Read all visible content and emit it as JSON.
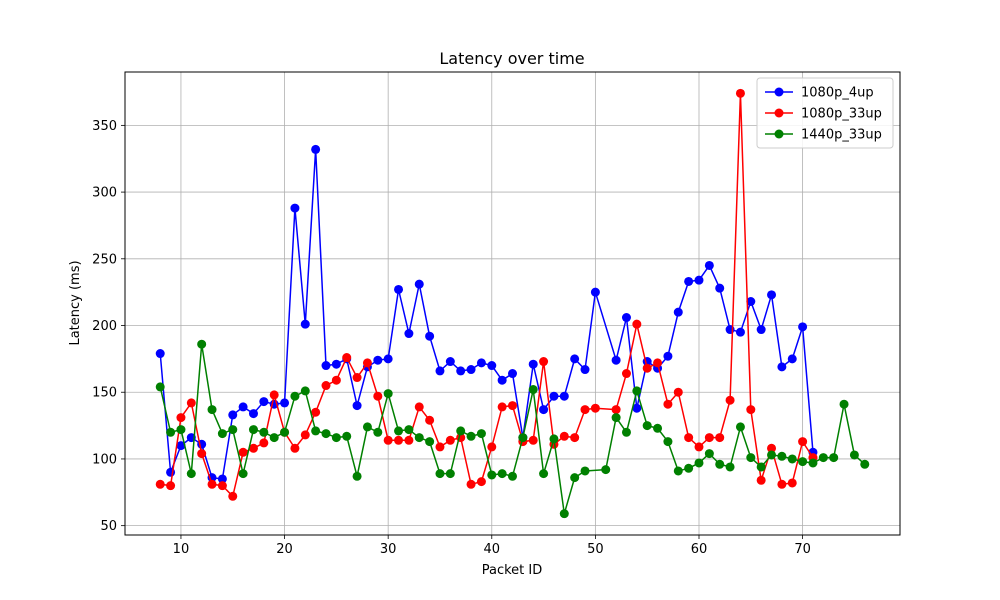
{
  "chart_data": {
    "type": "line",
    "title": "Latency over time",
    "xlabel": "Packet ID",
    "ylabel": "Latency (ms)",
    "xlim": [
      4.6,
      79.4
    ],
    "ylim": [
      43,
      390
    ],
    "xticks": [
      10,
      20,
      30,
      40,
      50,
      60,
      70
    ],
    "yticks": [
      50,
      100,
      150,
      200,
      250,
      300,
      350
    ],
    "grid": true,
    "legend_position": "top-right",
    "series": [
      {
        "name": "1080p_4up",
        "color": "#0000ff",
        "points": [
          [
            8,
            179
          ],
          [
            9,
            90
          ],
          [
            10,
            110
          ],
          [
            11,
            116
          ],
          [
            12,
            111
          ],
          [
            13,
            86
          ],
          [
            14,
            85
          ],
          [
            15,
            133
          ],
          [
            16,
            139
          ],
          [
            17,
            134
          ],
          [
            18,
            143
          ],
          [
            19,
            141
          ],
          [
            20,
            142
          ],
          [
            21,
            288
          ],
          [
            22,
            201
          ],
          [
            23,
            332
          ],
          [
            24,
            170
          ],
          [
            25,
            171
          ],
          [
            26,
            175
          ],
          [
            27,
            140
          ],
          [
            28,
            169
          ],
          [
            29,
            174
          ],
          [
            30,
            175
          ],
          [
            31,
            227
          ],
          [
            32,
            194
          ],
          [
            33,
            231
          ],
          [
            34,
            192
          ],
          [
            35,
            166
          ],
          [
            36,
            173
          ],
          [
            37,
            166
          ],
          [
            38,
            167
          ],
          [
            39,
            172
          ],
          [
            40,
            170
          ],
          [
            41,
            159
          ],
          [
            42,
            164
          ],
          [
            43,
            116
          ],
          [
            44,
            171
          ],
          [
            45,
            137
          ],
          [
            46,
            147
          ],
          [
            47,
            147
          ],
          [
            48,
            175
          ],
          [
            49,
            167
          ],
          [
            50,
            225
          ],
          [
            52,
            174
          ],
          [
            53,
            206
          ],
          [
            54,
            138
          ],
          [
            55,
            173
          ],
          [
            56,
            168
          ],
          [
            57,
            177
          ],
          [
            58,
            210
          ],
          [
            59,
            233
          ],
          [
            60,
            234
          ],
          [
            61,
            245
          ],
          [
            62,
            228
          ],
          [
            63,
            197
          ],
          [
            64,
            195
          ],
          [
            65,
            218
          ],
          [
            66,
            197
          ],
          [
            67,
            223
          ],
          [
            68,
            169
          ],
          [
            69,
            175
          ],
          [
            70,
            199
          ],
          [
            71,
            105
          ]
        ]
      },
      {
        "name": "1080p_33up",
        "color": "#ff0000",
        "points": [
          [
            8,
            81
          ],
          [
            9,
            80
          ],
          [
            10,
            131
          ],
          [
            11,
            142
          ],
          [
            12,
            104
          ],
          [
            13,
            81
          ],
          [
            14,
            80
          ],
          [
            15,
            72
          ],
          [
            16,
            105
          ],
          [
            17,
            108
          ],
          [
            18,
            112
          ],
          [
            19,
            148
          ],
          [
            20,
            120
          ],
          [
            21,
            108
          ],
          [
            22,
            118
          ],
          [
            23,
            135
          ],
          [
            24,
            155
          ],
          [
            25,
            159
          ],
          [
            26,
            176
          ],
          [
            27,
            161
          ],
          [
            28,
            172
          ],
          [
            29,
            147
          ],
          [
            30,
            114
          ],
          [
            31,
            114
          ],
          [
            32,
            114
          ],
          [
            33,
            139
          ],
          [
            34,
            129
          ],
          [
            35,
            109
          ],
          [
            36,
            114
          ],
          [
            37,
            116
          ],
          [
            38,
            81
          ],
          [
            39,
            83
          ],
          [
            40,
            109
          ],
          [
            41,
            139
          ],
          [
            42,
            140
          ],
          [
            43,
            113
          ],
          [
            44,
            114
          ],
          [
            45,
            173
          ],
          [
            46,
            111
          ],
          [
            47,
            117
          ],
          [
            48,
            116
          ],
          [
            49,
            137
          ],
          [
            50,
            138
          ],
          [
            52,
            137
          ],
          [
            53,
            164
          ],
          [
            54,
            201
          ],
          [
            55,
            168
          ],
          [
            56,
            172
          ],
          [
            57,
            141
          ],
          [
            58,
            150
          ],
          [
            59,
            116
          ],
          [
            60,
            109
          ],
          [
            61,
            116
          ],
          [
            62,
            116
          ],
          [
            63,
            144
          ],
          [
            64,
            374
          ],
          [
            65,
            137
          ],
          [
            66,
            84
          ],
          [
            67,
            108
          ],
          [
            68,
            81
          ],
          [
            69,
            82
          ],
          [
            70,
            113
          ],
          [
            71,
            101
          ]
        ]
      },
      {
        "name": "1440p_33up",
        "color": "#008000",
        "points": [
          [
            8,
            154
          ],
          [
            9,
            120
          ],
          [
            10,
            122
          ],
          [
            11,
            89
          ],
          [
            12,
            186
          ],
          [
            13,
            137
          ],
          [
            14,
            119
          ],
          [
            15,
            122
          ],
          [
            16,
            89
          ],
          [
            17,
            122
          ],
          [
            18,
            120
          ],
          [
            19,
            116
          ],
          [
            20,
            120
          ],
          [
            21,
            147
          ],
          [
            22,
            151
          ],
          [
            23,
            121
          ],
          [
            24,
            119
          ],
          [
            25,
            116
          ],
          [
            26,
            117
          ],
          [
            27,
            87
          ],
          [
            28,
            124
          ],
          [
            29,
            120
          ],
          [
            30,
            149
          ],
          [
            31,
            121
          ],
          [
            32,
            122
          ],
          [
            33,
            116
          ],
          [
            34,
            113
          ],
          [
            35,
            89
          ],
          [
            36,
            89
          ],
          [
            37,
            121
          ],
          [
            38,
            117
          ],
          [
            39,
            119
          ],
          [
            40,
            88
          ],
          [
            41,
            89
          ],
          [
            42,
            87
          ],
          [
            43,
            116
          ],
          [
            44,
            152
          ],
          [
            45,
            89
          ],
          [
            46,
            115
          ],
          [
            47,
            59
          ],
          [
            48,
            86
          ],
          [
            49,
            91
          ],
          [
            51,
            92
          ],
          [
            52,
            131
          ],
          [
            53,
            120
          ],
          [
            54,
            151
          ],
          [
            55,
            125
          ],
          [
            56,
            123
          ],
          [
            57,
            113
          ],
          [
            58,
            91
          ],
          [
            59,
            93
          ],
          [
            60,
            97
          ],
          [
            61,
            104
          ],
          [
            62,
            96
          ],
          [
            63,
            94
          ],
          [
            64,
            124
          ],
          [
            65,
            101
          ],
          [
            66,
            94
          ],
          [
            67,
            103
          ],
          [
            68,
            102
          ],
          [
            69,
            100
          ],
          [
            70,
            98
          ],
          [
            71,
            97
          ],
          [
            72,
            101
          ],
          [
            73,
            101
          ],
          [
            74,
            141
          ],
          [
            75,
            103
          ],
          [
            76,
            96
          ]
        ]
      }
    ]
  }
}
